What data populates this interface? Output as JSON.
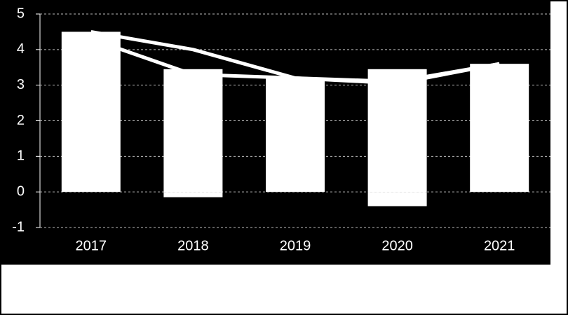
{
  "chart_data": {
    "type": "bar",
    "categories": [
      "2017",
      "2018",
      "2019",
      "2020",
      "2021"
    ],
    "series": [
      {
        "kind": "bar",
        "color": "#ffffff",
        "values": [
          4.5,
          3.45,
          3.2,
          3.45,
          3.6
        ]
      },
      {
        "kind": "bar",
        "color": "#ffffff",
        "values": [
          0,
          -0.15,
          0,
          -0.4,
          0
        ]
      },
      {
        "kind": "line",
        "color": "#ffffff",
        "values": [
          4.5,
          4.0,
          3.2,
          3.1,
          3.6
        ]
      },
      {
        "kind": "line",
        "color": "#ffffff",
        "values": [
          4.3,
          3.3,
          3.2,
          3.05,
          3.6
        ]
      }
    ],
    "ylim": [
      -1,
      5
    ],
    "yticks": [
      -1,
      0,
      1,
      2,
      3,
      4,
      5
    ],
    "grid": true,
    "background": "#000000"
  }
}
